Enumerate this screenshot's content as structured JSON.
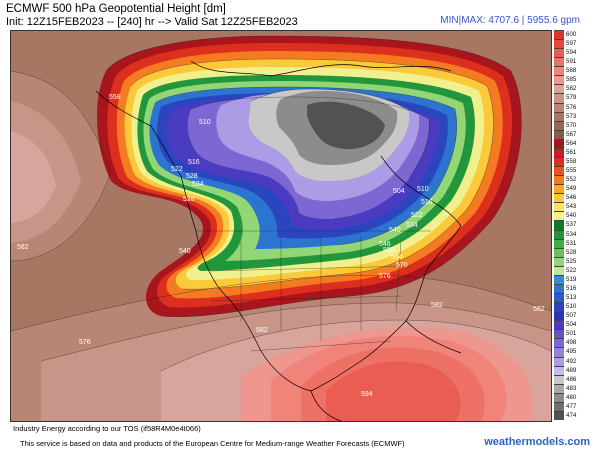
{
  "header": {
    "title": "ECMWF 500 hPa Geopotential Height [dm]",
    "init_line": "Init: 12Z15FEB2023 -- [240] hr --> Valid Sat 12Z25FEB2023",
    "minmax": "MIN|MAX: 4707.6 | 5955.6 gpm"
  },
  "map": {
    "contour_labels": [
      {
        "text": "510"
      },
      {
        "text": "516"
      },
      {
        "text": "522"
      },
      {
        "text": "528"
      },
      {
        "text": "534"
      },
      {
        "text": "540"
      },
      {
        "text": "558"
      },
      {
        "text": "582"
      },
      {
        "text": "504"
      },
      {
        "text": "510"
      },
      {
        "text": "516"
      },
      {
        "text": "522"
      },
      {
        "text": "534"
      },
      {
        "text": "540"
      },
      {
        "text": "546"
      },
      {
        "text": "552"
      },
      {
        "text": "564"
      },
      {
        "text": "570"
      },
      {
        "text": "576"
      },
      {
        "text": "582"
      },
      {
        "text": "576"
      },
      {
        "text": "582"
      },
      {
        "text": "582"
      },
      {
        "text": "594"
      },
      {
        "text": "528"
      }
    ]
  },
  "colorbar": {
    "levels": [
      {
        "label": "600",
        "color": "#e0332d"
      },
      {
        "label": "597",
        "color": "#e5483f"
      },
      {
        "label": "594",
        "color": "#ea5d52"
      },
      {
        "label": "591",
        "color": "#ee7165"
      },
      {
        "label": "588",
        "color": "#f0847a"
      },
      {
        "label": "585",
        "color": "#ee978f"
      },
      {
        "label": "582",
        "color": "#d9a49b"
      },
      {
        "label": "579",
        "color": "#c99588"
      },
      {
        "label": "576",
        "color": "#b98676"
      },
      {
        "label": "573",
        "color": "#a87764"
      },
      {
        "label": "570",
        "color": "#966853"
      },
      {
        "label": "567",
        "color": "#865a44"
      },
      {
        "label": "564",
        "color": "#a8151c"
      },
      {
        "label": "561",
        "color": "#c41f1d"
      },
      {
        "label": "558",
        "color": "#dd2f1e"
      },
      {
        "label": "555",
        "color": "#ee5020"
      },
      {
        "label": "552",
        "color": "#f57b22"
      },
      {
        "label": "549",
        "color": "#f9a62a"
      },
      {
        "label": "546",
        "color": "#fcc93a"
      },
      {
        "label": "543",
        "color": "#fde35c"
      },
      {
        "label": "540",
        "color": "#f1f08e"
      },
      {
        "label": "537",
        "color": "#0f7a2e"
      },
      {
        "label": "534",
        "color": "#22963a"
      },
      {
        "label": "531",
        "color": "#3fae48"
      },
      {
        "label": "528",
        "color": "#66c35c"
      },
      {
        "label": "525",
        "color": "#92d675"
      },
      {
        "label": "522",
        "color": "#bfe6a1"
      },
      {
        "label": "519",
        "color": "#2f8fd6"
      },
      {
        "label": "516",
        "color": "#2c74d0"
      },
      {
        "label": "513",
        "color": "#2b5dc7"
      },
      {
        "label": "510",
        "color": "#2a45bf"
      },
      {
        "label": "507",
        "color": "#2c32b4"
      },
      {
        "label": "504",
        "color": "#4a3bc0"
      },
      {
        "label": "501",
        "color": "#6450ca"
      },
      {
        "label": "498",
        "color": "#7d67d3"
      },
      {
        "label": "495",
        "color": "#9580dc"
      },
      {
        "label": "492",
        "color": "#ae9be5"
      },
      {
        "label": "489",
        "color": "#c7b9ee"
      },
      {
        "label": "486",
        "color": "#c8c8c8"
      },
      {
        "label": "483",
        "color": "#a9a9a9"
      },
      {
        "label": "480",
        "color": "#8c8c8c"
      },
      {
        "label": "477",
        "color": "#6f6f6f"
      },
      {
        "label": "474",
        "color": "#525252"
      }
    ]
  },
  "footer": {
    "license": "Industry Energy according to our TOS (if58R4M0e4t066)",
    "attribution": "This service is based on data and products of the European Centre for Medium-range Weather Forecasts (ECMWF)",
    "brand": "weathermodels.com"
  }
}
